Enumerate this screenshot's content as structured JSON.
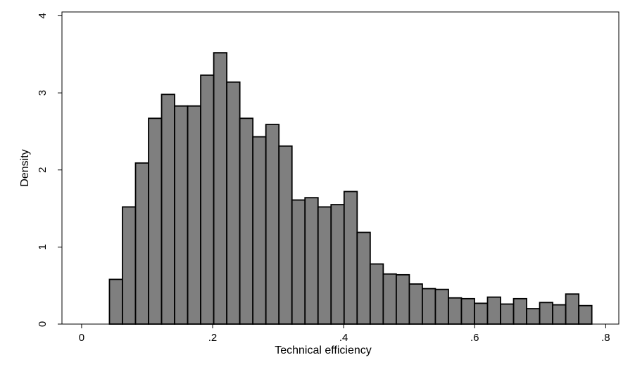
{
  "chart_data": {
    "type": "bar",
    "xlabel": "Technical efficiency",
    "ylabel": "Density",
    "xlim": [
      -0.03,
      0.82
    ],
    "ylim": [
      0,
      4.05
    ],
    "x_ticks": [
      {
        "value": 0,
        "label": "0"
      },
      {
        "value": 0.2,
        "label": ".2"
      },
      {
        "value": 0.4,
        "label": ".4"
      },
      {
        "value": 0.6,
        "label": ".6"
      },
      {
        "value": 0.8,
        "label": ".8"
      }
    ],
    "y_ticks": [
      {
        "value": 0,
        "label": "0"
      },
      {
        "value": 1,
        "label": "1"
      },
      {
        "value": 2,
        "label": "2"
      },
      {
        "value": 3,
        "label": "3"
      },
      {
        "value": 4,
        "label": "4"
      }
    ],
    "grid": false,
    "bin_start": 0.0425,
    "bin_width": 0.0199,
    "values": [
      0.58,
      1.52,
      2.09,
      2.67,
      2.98,
      2.83,
      2.83,
      3.23,
      3.52,
      3.14,
      2.67,
      2.43,
      2.59,
      2.31,
      1.61,
      1.64,
      1.52,
      1.55,
      1.72,
      1.19,
      0.78,
      0.65,
      0.64,
      0.52,
      0.46,
      0.45,
      0.34,
      0.33,
      0.27,
      0.35,
      0.26,
      0.33,
      0.2,
      0.28,
      0.25,
      0.39,
      0.24
    ],
    "colors": {
      "bar_fill": "#7f7f7f",
      "bar_stroke": "#000000"
    }
  }
}
